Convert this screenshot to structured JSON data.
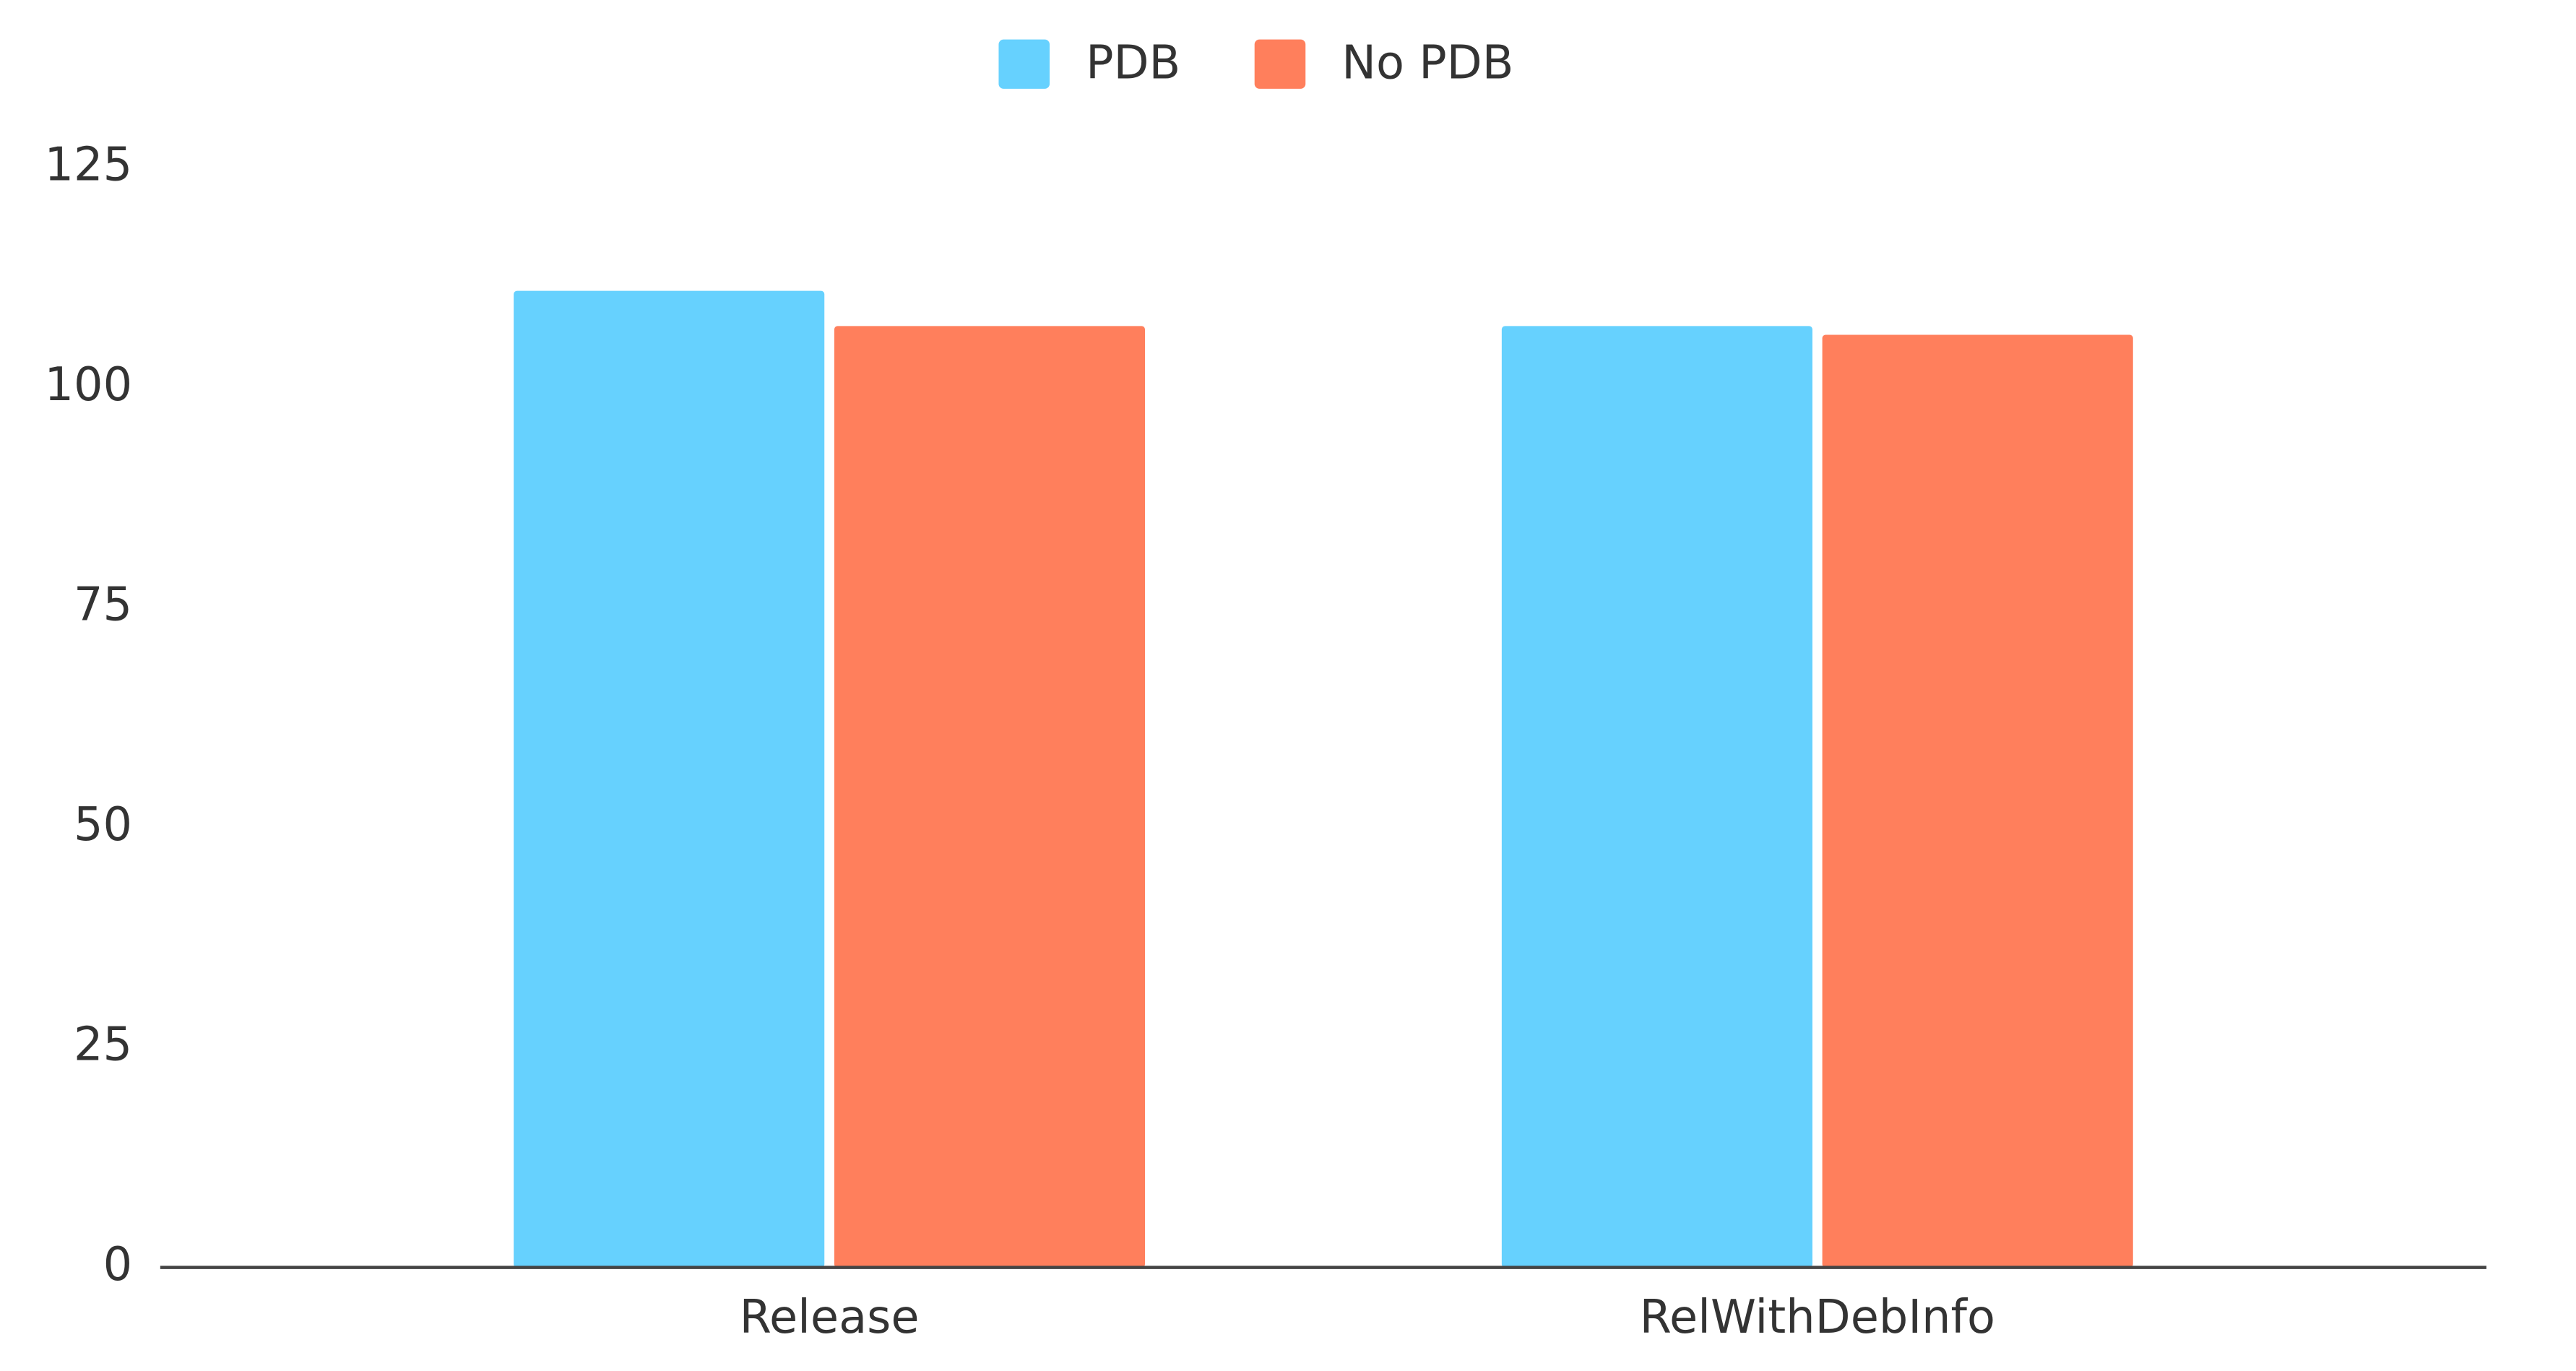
{
  "chart_data": {
    "type": "bar",
    "categories": [
      "Release",
      "RelWithDebInfo"
    ],
    "series": [
      {
        "name": "PDB",
        "color": "#66d1fe",
        "values": [
          111,
          107
        ]
      },
      {
        "name": "No PDB",
        "color": "#ff7f5c",
        "values": [
          107,
          106
        ]
      }
    ],
    "ylim": [
      0,
      125
    ],
    "yticks": [
      0,
      25,
      50,
      75,
      100,
      125
    ],
    "grid": false,
    "legend": "top"
  }
}
